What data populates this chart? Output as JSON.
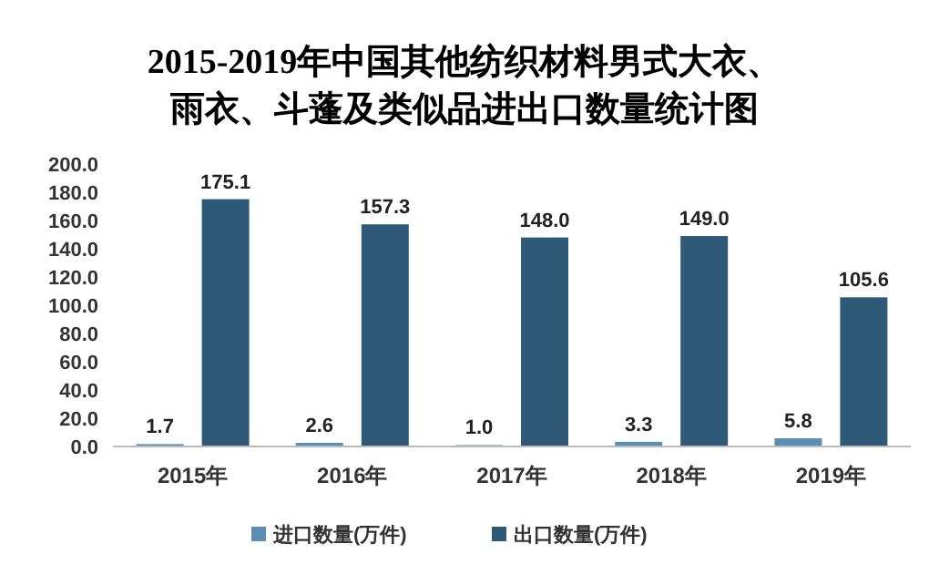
{
  "chart_data": {
    "type": "bar",
    "title": "2015-2019年中国其他纺织材料男式大衣、雨衣、斗蓬及类似品进出口数量统计图",
    "categories": [
      "2015年",
      "2016年",
      "2017年",
      "2018年",
      "2019年"
    ],
    "series": [
      {
        "name": "进口数量(万件)",
        "color": "#5b8db5",
        "values": [
          1.7,
          2.6,
          1.0,
          3.3,
          5.8
        ],
        "value_labels": [
          "1.7",
          "2.6",
          "1.0",
          "3.3",
          "5.8"
        ]
      },
      {
        "name": "出口数量(万件)",
        "color": "#2e5a78",
        "values": [
          175.1,
          157.3,
          148.0,
          149.0,
          105.6
        ],
        "value_labels": [
          "175.1",
          "157.3",
          "148.0",
          "149.0",
          "105.6"
        ]
      }
    ],
    "ylim": [
      0,
      200
    ],
    "yticks": [
      {
        "value": 0,
        "label": "0.0"
      },
      {
        "value": 20,
        "label": "20.0"
      },
      {
        "value": 40,
        "label": "40.0"
      },
      {
        "value": 60,
        "label": "60.0"
      },
      {
        "value": 80,
        "label": "80.0"
      },
      {
        "value": 100,
        "label": "100.0"
      },
      {
        "value": 120,
        "label": "120.0"
      },
      {
        "value": 140,
        "label": "140.0"
      },
      {
        "value": 160,
        "label": "160.0"
      },
      {
        "value": 180,
        "label": "180.0"
      },
      {
        "value": 200,
        "label": "200.0"
      }
    ],
    "legend": "bottom"
  }
}
